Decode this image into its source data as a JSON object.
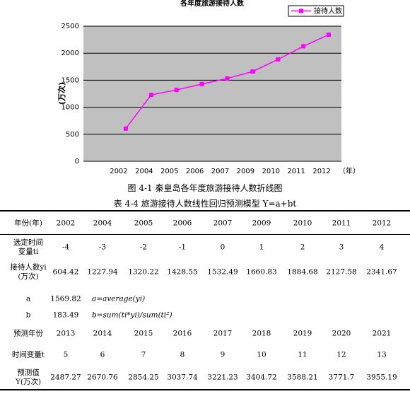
{
  "chart_data": {
    "type": "line",
    "title": "各年度旅游接待人数",
    "y_label": "(万次)",
    "x_label": "（年）",
    "categories": [
      "2002",
      "2004",
      "2005",
      "2006",
      "2007",
      "2009",
      "2010",
      "2011",
      "2012"
    ],
    "series": [
      {
        "name": "接待人数",
        "color": "#ff00ff",
        "values": [
          604.42,
          1227.94,
          1320.22,
          1428.55,
          1532.49,
          1660.83,
          1884.68,
          2127.58,
          2341.67
        ]
      }
    ],
    "ylim": [
      0,
      2500
    ],
    "yticks": [
      0,
      500,
      1000,
      1500,
      2000,
      2500
    ],
    "grid": true,
    "legend": "top-right"
  },
  "figure_caption": "图 4-1  秦皇岛各年度旅游接待人数折线图",
  "table_caption": "表 4-4  旅游接待人数线性回归预测模型 Y=a+bt",
  "table": {
    "header": [
      "年份(年)",
      "2002",
      "2004",
      "2005",
      "2006",
      "2007",
      "2009",
      "2010",
      "2011",
      "2012"
    ],
    "rows": [
      [
        "选定时间变量ti",
        "-4",
        "-3",
        "-2",
        "-1",
        "0",
        "1",
        "2",
        "3",
        "4"
      ],
      [
        "接待人数yi (万次)",
        "604.42",
        "1227.94",
        "1320.22",
        "1428.55",
        "1532.49",
        "1660.83",
        "1884.68",
        "2127.58",
        "2341.67"
      ],
      [
        "a",
        "1569.82",
        "a=average(yi)"
      ],
      [
        "b",
        "183.49",
        "b=sum(ti*yi)/sum(ti²)"
      ],
      [
        "预测年份",
        "2013",
        "2014",
        "2015",
        "2016",
        "2017",
        "2018",
        "2019",
        "2020",
        "2021"
      ],
      [
        "时间变量t",
        "5",
        "6",
        "7",
        "8",
        "9",
        "10",
        "11",
        "12",
        "13"
      ],
      [
        "预测值Y(万次)",
        "2487.27",
        "2670.76",
        "2854.25",
        "3037.74",
        "3221.23",
        "3404.72",
        "3588.21",
        "3771.7",
        "3955.19"
      ]
    ]
  }
}
